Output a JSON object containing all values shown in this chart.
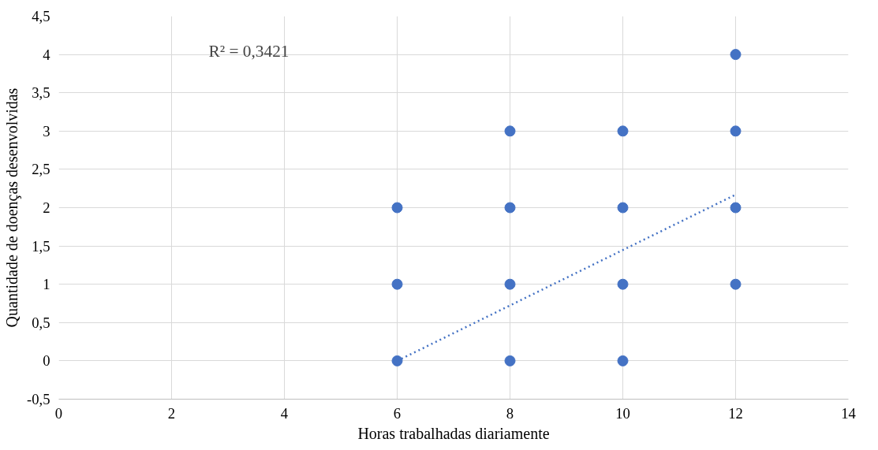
{
  "chart_data": {
    "type": "scatter",
    "xlabel": "Horas trabalhadas diariamente",
    "ylabel": "Quantidade de doenças desenvolvidas",
    "annotations": [
      "R² = 0,3421"
    ],
    "series": [
      {
        "type": "scatter",
        "color": "#4472c4",
        "x": [
          6,
          6,
          6,
          8,
          8,
          8,
          8,
          10,
          10,
          10,
          10,
          12,
          12,
          12,
          12
        ],
        "values": [
          0,
          1,
          2,
          0,
          1,
          2,
          3,
          0,
          1,
          2,
          3,
          1,
          2,
          3,
          4
        ],
        "marker": "circle"
      },
      {
        "type": "line",
        "color": "#4472c4",
        "x": [
          6,
          12
        ],
        "values": [
          0,
          2.17
        ],
        "line_style": "dotted"
      }
    ],
    "xlim": [
      0,
      14
    ],
    "xticks": [
      0,
      2,
      4,
      6,
      8,
      10,
      12,
      14
    ],
    "ylim": [
      -0.5,
      4.5
    ],
    "yticks": [
      {
        "value": -0.5,
        "label": "-0,5"
      },
      0,
      {
        "value": 0.5,
        "label": "0,5"
      },
      1,
      {
        "value": 1.5,
        "label": "1,5"
      },
      2,
      {
        "value": 2.5,
        "label": "2,5"
      },
      3,
      {
        "value": 3.5,
        "label": "3,5"
      },
      4,
      {
        "value": 4.5,
        "label": "4,5"
      }
    ],
    "grid": true
  }
}
